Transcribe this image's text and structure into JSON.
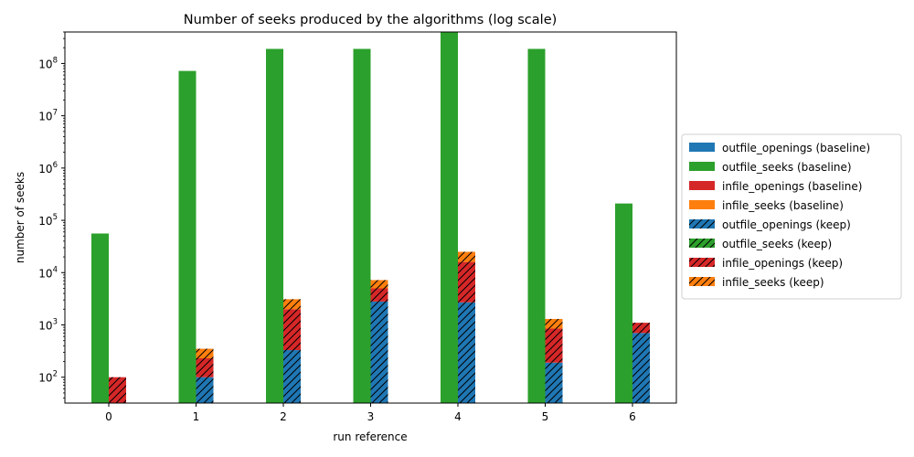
{
  "chart_data": {
    "type": "bar",
    "title": "Number of seeks produced by the algorithms (log scale)",
    "xlabel": "run reference",
    "ylabel": "number of seeks",
    "yscale": "log",
    "ylim": [
      32,
      400000000
    ],
    "grid": false,
    "legend_placement": "center-right-outside",
    "categories": [
      "0",
      "1",
      "2",
      "3",
      "4",
      "5",
      "6"
    ],
    "y_ticks": [
      {
        "value": 100,
        "base": "10",
        "exp": "2"
      },
      {
        "value": 1000,
        "base": "10",
        "exp": "3"
      },
      {
        "value": 10000,
        "base": "10",
        "exp": "4"
      },
      {
        "value": 100000,
        "base": "10",
        "exp": "5"
      },
      {
        "value": 1000000,
        "base": "10",
        "exp": "6"
      },
      {
        "value": 10000000,
        "base": "10",
        "exp": "7"
      },
      {
        "value": 100000000,
        "base": "10",
        "exp": "8"
      }
    ],
    "series": [
      {
        "name": "outfile_openings (baseline)",
        "group": "baseline",
        "color": "#1f77b4",
        "hatch": false,
        "values": [
          0,
          0,
          0,
          0,
          0,
          0,
          0
        ]
      },
      {
        "name": "outfile_seeks (baseline)",
        "group": "baseline",
        "color": "#2ca02c",
        "hatch": false,
        "values": [
          56000,
          72000000,
          190000000,
          190000000,
          400000000,
          190000000,
          210000
        ]
      },
      {
        "name": "infile_openings (baseline)",
        "group": "baseline",
        "color": "#d62728",
        "hatch": false,
        "values": [
          0,
          0,
          0,
          0,
          0,
          0,
          0
        ]
      },
      {
        "name": "infile_seeks (baseline)",
        "group": "baseline",
        "color": "#ff7f0e",
        "hatch": false,
        "values": [
          0,
          0,
          0,
          0,
          0,
          0,
          0
        ]
      },
      {
        "name": "outfile_openings (keep)",
        "group": "keep",
        "color": "#1f77b4",
        "hatch": true,
        "values": [
          0,
          100,
          330,
          2800,
          2700,
          190,
          700
        ]
      },
      {
        "name": "outfile_seeks (keep)",
        "group": "keep",
        "color": "#2ca02c",
        "hatch": true,
        "values": [
          0,
          0,
          0,
          0,
          0,
          0,
          0
        ]
      },
      {
        "name": "infile_openings (keep)",
        "group": "keep",
        "color": "#d62728",
        "hatch": true,
        "values": [
          100,
          130,
          1670,
          2200,
          13300,
          660,
          400
        ]
      },
      {
        "name": "infile_seeks (keep)",
        "group": "keep",
        "color": "#ff7f0e",
        "hatch": true,
        "values": [
          0,
          120,
          1100,
          2200,
          9000,
          450,
          0
        ]
      }
    ]
  }
}
